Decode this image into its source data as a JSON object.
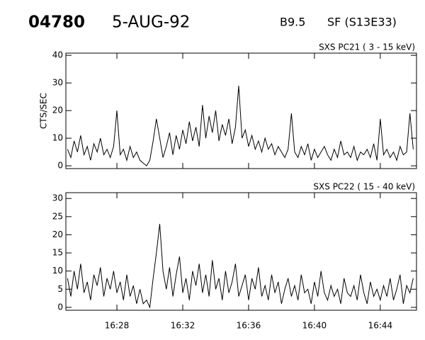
{
  "header": {
    "id": "04780",
    "date": "5-AUG-92",
    "class": "B9.5",
    "flare": "SF (S13E33)"
  },
  "chart_data": [
    {
      "type": "line",
      "title": "SXS PC21  (  3 - 15 keV)",
      "y_label": "CTS/SEC",
      "x": [
        25.0,
        25.2,
        25.4,
        25.6,
        25.8,
        26.0,
        26.2,
        26.4,
        26.6,
        26.8,
        27.0,
        27.2,
        27.4,
        27.6,
        27.8,
        28.0,
        28.2,
        28.4,
        28.6,
        28.8,
        29.0,
        29.2,
        29.4,
        29.6,
        29.8,
        30.0,
        30.2,
        30.4,
        30.6,
        30.8,
        31.0,
        31.2,
        31.4,
        31.6,
        31.8,
        32.0,
        32.2,
        32.4,
        32.6,
        32.8,
        33.0,
        33.2,
        33.4,
        33.6,
        33.8,
        34.0,
        34.2,
        34.4,
        34.6,
        34.8,
        35.0,
        35.2,
        35.4,
        35.6,
        35.8,
        36.0,
        36.2,
        36.4,
        36.6,
        36.8,
        37.0,
        37.2,
        37.4,
        37.6,
        37.8,
        38.0,
        38.2,
        38.4,
        38.6,
        38.8,
        39.0,
        39.2,
        39.4,
        39.6,
        39.8,
        40.0,
        40.2,
        40.4,
        40.6,
        40.8,
        41.0,
        41.2,
        41.4,
        41.6,
        41.8,
        42.0,
        42.2,
        42.4,
        42.6,
        42.8,
        43.0,
        43.2,
        43.4,
        43.6,
        43.8,
        44.0,
        44.2,
        44.4,
        44.6,
        44.8,
        45.0,
        45.2,
        45.4,
        45.6,
        45.8,
        46.0
      ],
      "series": [
        {
          "color": "#000000",
          "values": [
            6,
            3,
            9,
            5,
            11,
            4,
            7,
            2,
            8,
            5,
            10,
            4,
            6,
            3,
            7,
            20,
            4,
            6,
            2,
            7,
            3,
            5,
            2,
            1,
            0,
            2,
            9,
            17,
            10,
            3,
            7,
            12,
            4,
            11,
            6,
            13,
            8,
            16,
            9,
            14,
            7,
            22,
            10,
            18,
            12,
            20,
            9,
            15,
            11,
            17,
            8,
            14,
            29,
            10,
            13,
            7,
            11,
            6,
            9,
            5,
            10,
            6,
            8,
            4,
            7,
            5,
            3,
            6,
            19,
            5,
            3,
            7,
            4,
            8,
            2,
            6,
            3,
            5,
            7,
            4,
            2,
            6,
            3,
            9,
            4,
            5,
            3,
            7,
            2,
            5,
            4,
            6,
            3,
            8,
            2,
            17,
            4,
            6,
            3,
            5,
            2,
            7,
            4,
            5,
            19,
            6
          ]
        }
      ],
      "xlim": [
        24.9,
        46.2
      ],
      "ylim": [
        -1,
        40.8
      ],
      "xticks": [
        28,
        32,
        36,
        40,
        44
      ],
      "yticks": [
        0,
        10,
        20,
        30,
        40
      ]
    },
    {
      "type": "line",
      "title": "SXS PC22  ( 15 - 40 keV)",
      "x": [
        25.0,
        25.2,
        25.4,
        25.6,
        25.8,
        26.0,
        26.2,
        26.4,
        26.6,
        26.8,
        27.0,
        27.2,
        27.4,
        27.6,
        27.8,
        28.0,
        28.2,
        28.4,
        28.6,
        28.8,
        29.0,
        29.2,
        29.4,
        29.6,
        29.8,
        30.0,
        30.2,
        30.4,
        30.6,
        30.8,
        31.0,
        31.2,
        31.4,
        31.6,
        31.8,
        32.0,
        32.2,
        32.4,
        32.6,
        32.8,
        33.0,
        33.2,
        33.4,
        33.6,
        33.8,
        34.0,
        34.2,
        34.4,
        34.6,
        34.8,
        35.0,
        35.2,
        35.4,
        35.6,
        35.8,
        36.0,
        36.2,
        36.4,
        36.6,
        36.8,
        37.0,
        37.2,
        37.4,
        37.6,
        37.8,
        38.0,
        38.2,
        38.4,
        38.6,
        38.8,
        39.0,
        39.2,
        39.4,
        39.6,
        39.8,
        40.0,
        40.2,
        40.4,
        40.6,
        40.8,
        41.0,
        41.2,
        41.4,
        41.6,
        41.8,
        42.0,
        42.2,
        42.4,
        42.6,
        42.8,
        43.0,
        43.2,
        43.4,
        43.6,
        43.8,
        44.0,
        44.2,
        44.4,
        44.6,
        44.8,
        45.0,
        45.2,
        45.4,
        45.6,
        45.8,
        46.0
      ],
      "series": [
        {
          "color": "#000000",
          "values": [
            8,
            3,
            10,
            5,
            12,
            4,
            7,
            2,
            9,
            6,
            11,
            3,
            8,
            5,
            10,
            4,
            7,
            2,
            9,
            3,
            6,
            1,
            5,
            1,
            2,
            0,
            8,
            15,
            23,
            10,
            5,
            11,
            3,
            9,
            14,
            4,
            8,
            2,
            10,
            6,
            12,
            4,
            9,
            3,
            13,
            5,
            8,
            2,
            10,
            4,
            7,
            12,
            3,
            6,
            9,
            2,
            8,
            5,
            11,
            3,
            6,
            2,
            9,
            4,
            7,
            1,
            5,
            8,
            3,
            6,
            2,
            9,
            4,
            5,
            1,
            7,
            3,
            10,
            4,
            2,
            6,
            3,
            5,
            1,
            8,
            4,
            3,
            6,
            2,
            9,
            4,
            1,
            7,
            3,
            5,
            2,
            6,
            3,
            8,
            2,
            5,
            9,
            1,
            6,
            4,
            8
          ]
        }
      ],
      "xlim": [
        24.9,
        46.2
      ],
      "ylim": [
        -0.8,
        31.6
      ],
      "xticks": [
        {
          "value": 28,
          "label": "16:28"
        },
        {
          "value": 32,
          "label": "16:32"
        },
        {
          "value": 36,
          "label": "16:36"
        },
        {
          "value": 40,
          "label": "16:40"
        },
        {
          "value": 44,
          "label": "16:44"
        }
      ],
      "yticks": [
        0,
        5,
        10,
        15,
        20,
        25,
        30
      ]
    }
  ]
}
